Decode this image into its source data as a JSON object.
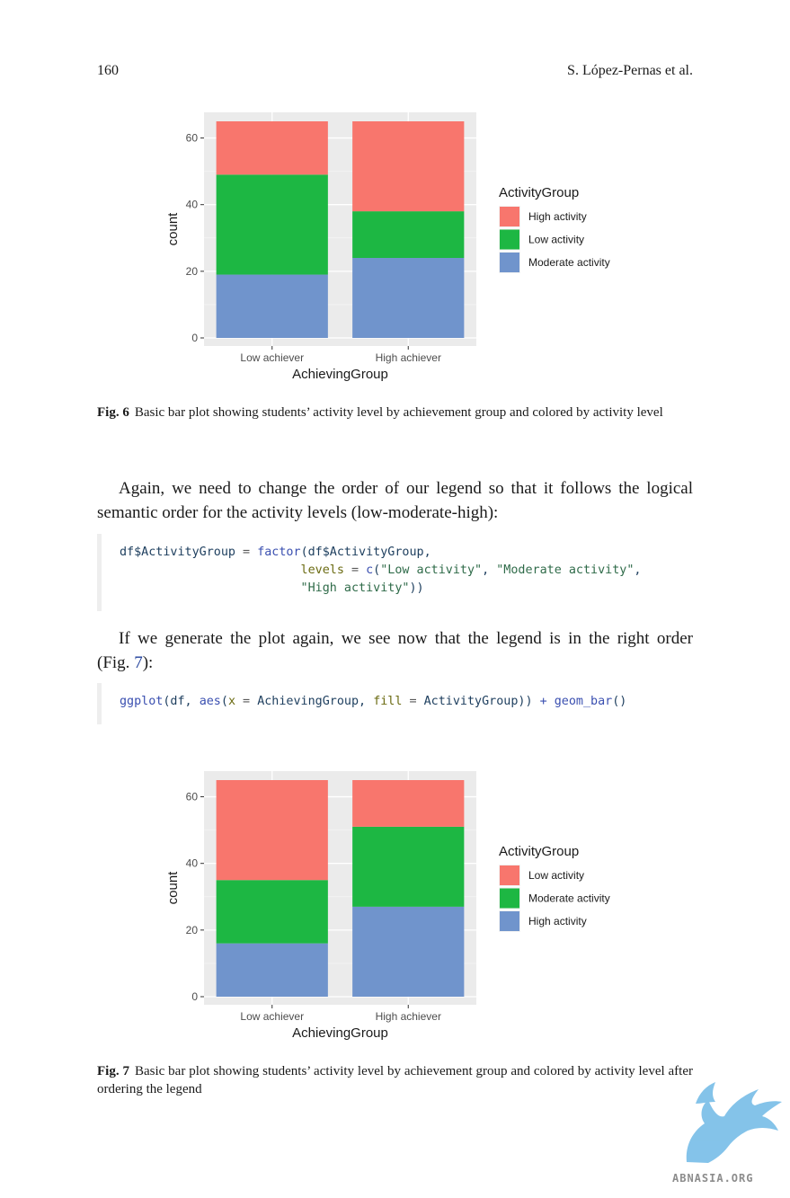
{
  "header": {
    "page_number": "160",
    "authors": "S. López-Pernas et al."
  },
  "figures": [
    {
      "id": "fig6",
      "caption_label": "Fig. 6",
      "caption_text": "Basic bar plot showing students’ activity level by achievement group and colored by activity level",
      "chart_data": {
        "type": "bar",
        "stacked": true,
        "categories": [
          "Low achiever",
          "High achiever"
        ],
        "series": [
          {
            "name": "High activity",
            "color": "#F8766D",
            "values": [
              16,
              27
            ]
          },
          {
            "name": "Low activity",
            "color": "#1DB743",
            "values": [
              30,
              14
            ]
          },
          {
            "name": "Moderate activity",
            "color": "#7094CC",
            "values": [
              19,
              24
            ]
          }
        ],
        "stack_order": [
          "Moderate activity",
          "Low activity",
          "High activity"
        ],
        "xlabel": "AchievingGroup",
        "ylabel": "count",
        "ylim": [
          0,
          65
        ],
        "yticks": [
          0,
          20,
          40,
          60
        ],
        "legend_title": "ActivityGroup",
        "legend_order": [
          "High activity",
          "Low activity",
          "Moderate activity"
        ],
        "legend_position": "right",
        "grid": true
      }
    },
    {
      "id": "fig7",
      "caption_label": "Fig. 7",
      "caption_text": "Basic bar plot showing students’ activity level by achievement group and colored by activity level after ordering the legend",
      "chart_data": {
        "type": "bar",
        "stacked": true,
        "categories": [
          "Low achiever",
          "High achiever"
        ],
        "series": [
          {
            "name": "Low activity",
            "color": "#F8766D",
            "values": [
              30,
              14
            ]
          },
          {
            "name": "Moderate activity",
            "color": "#1DB743",
            "values": [
              19,
              24
            ]
          },
          {
            "name": "High activity",
            "color": "#7094CC",
            "values": [
              16,
              27
            ]
          }
        ],
        "stack_order": [
          "High activity",
          "Moderate activity",
          "Low activity"
        ],
        "xlabel": "AchievingGroup",
        "ylabel": "count",
        "ylim": [
          0,
          65
        ],
        "yticks": [
          0,
          20,
          40,
          60
        ],
        "legend_title": "ActivityGroup",
        "legend_order": [
          "Low activity",
          "Moderate activity",
          "High activity"
        ],
        "legend_position": "right",
        "grid": true
      }
    }
  ],
  "paragraphs": {
    "p1": "Again, we need to change the order of our legend so that it follows the logical semantic order for the activity levels (low-moderate-high):",
    "p2_before": "If we generate the plot again, we see now that the legend is in the right order (Fig. ",
    "p2_ref": "7",
    "p2_after": "):"
  },
  "code1": {
    "l1_obj": "df$ActivityGroup",
    "l1_eq": " = ",
    "l1_fn": "factor",
    "l1_rest": "(df$ActivityGroup,",
    "l2_indent": "                         ",
    "l2_arg": "levels",
    "l2_eq": " = ",
    "l2_fn": "c",
    "l2_open": "(",
    "l2_s1": "\"Low activity\"",
    "l2_comma": ", ",
    "l2_s2": "\"Moderate activity\"",
    "l2_end": ",",
    "l3_indent": "                         ",
    "l3_s3": "\"High activity\"",
    "l3_end": "))"
  },
  "code2": {
    "fn1": "ggplot",
    "p1": "(df, ",
    "fn2": "aes",
    "p2": "(",
    "a1": "x",
    "eq1": " = ",
    "v1": "AchievingGroup, ",
    "a2": "fill",
    "eq2": " = ",
    "v2": "ActivityGroup)) ",
    "plus": "+ ",
    "fn3": "geom_bar",
    "p3": "()"
  },
  "watermark": {
    "text": "ABNASIA.ORG",
    "color": "#6fb9e6"
  }
}
